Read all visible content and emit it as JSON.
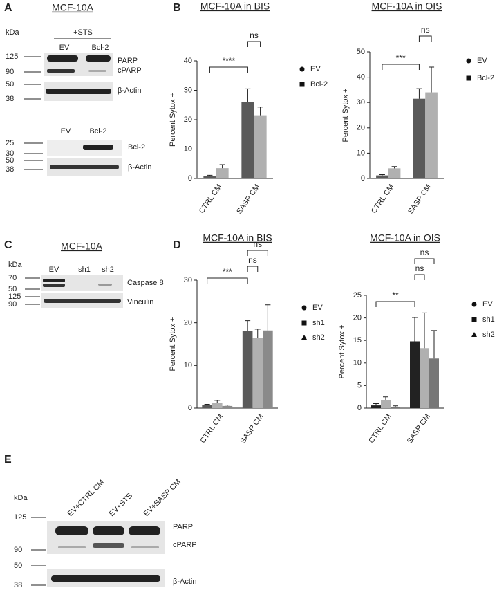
{
  "panels": {
    "A": {
      "label": "A",
      "title": "MCF-10A",
      "unit": "kDa",
      "treatment": "+STS",
      "blot1": {
        "lanes": [
          "EV",
          "Bcl-2"
        ],
        "markers": [
          125,
          90,
          50,
          38
        ],
        "bands": [
          "PARP",
          "cPARP",
          "β-Actin"
        ]
      },
      "blot2": {
        "lanes": [
          "EV",
          "Bcl-2"
        ],
        "markers": [
          25,
          30,
          50,
          38
        ],
        "bands": [
          "Bcl-2",
          "β-Actin"
        ]
      }
    },
    "B": {
      "label": "B"
    },
    "C": {
      "label": "C",
      "title": "MCF-10A",
      "unit": "kDa",
      "lanes": [
        "EV",
        "sh1",
        "sh2"
      ],
      "markers": [
        70,
        50,
        125,
        90
      ],
      "bands": [
        "Caspase 8",
        "Vinculin"
      ]
    },
    "D": {
      "label": "D"
    },
    "E": {
      "label": "E",
      "unit": "kDa",
      "lanes": [
        "EV+CTRL CM",
        "EV+STS",
        "EV+SASP CM"
      ],
      "markers": [
        125,
        90,
        50,
        38
      ],
      "bands": [
        "PARP",
        "cPARP",
        "β-Actin"
      ]
    }
  },
  "chart_data": [
    {
      "type": "bar",
      "title": "MCF-10A in BIS",
      "y_label": "Percent Sytox +",
      "categories": [
        "CTRL CM",
        "SASP CM"
      ],
      "series": [
        {
          "name": "EV",
          "color": "#5a5a5a",
          "marker": "circle",
          "values": [
            0.8,
            26
          ],
          "errors": [
            0.3,
            4.5
          ]
        },
        {
          "name": "Bcl-2",
          "color": "#b0b0b0",
          "marker": "square",
          "values": [
            3.5,
            21.5
          ],
          "errors": [
            1.2,
            2.8
          ]
        }
      ],
      "ylim": [
        0,
        40
      ],
      "yticks": [
        0,
        10,
        20,
        30,
        40
      ],
      "annotations": [
        "****",
        "ns"
      ]
    },
    {
      "type": "bar",
      "title": "MCF-10A in OIS",
      "y_label": "Percent Sytox +",
      "categories": [
        "CTRL CM",
        "SASP CM"
      ],
      "series": [
        {
          "name": "EV",
          "color": "#5a5a5a",
          "marker": "circle",
          "values": [
            1.2,
            31.5
          ],
          "errors": [
            0.3,
            4
          ]
        },
        {
          "name": "Bcl-2",
          "color": "#b0b0b0",
          "marker": "square",
          "values": [
            4,
            34
          ],
          "errors": [
            0.7,
            10
          ]
        }
      ],
      "ylim": [
        0,
        50
      ],
      "yticks": [
        0,
        10,
        20,
        30,
        40,
        50
      ],
      "annotations": [
        "***",
        "ns"
      ]
    },
    {
      "type": "bar",
      "title": "MCF-10A in BIS",
      "y_label": "Percent Sytox +",
      "categories": [
        "CTRL CM",
        "SASP CM"
      ],
      "series": [
        {
          "name": "EV",
          "color": "#5a5a5a",
          "marker": "circle",
          "values": [
            0.7,
            18
          ],
          "errors": [
            0.2,
            2.5
          ]
        },
        {
          "name": "sh1",
          "color": "#b0b0b0",
          "marker": "square",
          "values": [
            1.3,
            16.5
          ],
          "errors": [
            0.5,
            2
          ]
        },
        {
          "name": "sh2",
          "color": "#8a8a8a",
          "marker": "triangle",
          "values": [
            0.5,
            18.2
          ],
          "errors": [
            0.2,
            6
          ]
        }
      ],
      "ylim": [
        0,
        30
      ],
      "yticks": [
        0,
        10,
        20,
        30
      ],
      "annotations": [
        "***",
        "ns",
        "ns"
      ]
    },
    {
      "type": "bar",
      "title": "MCF-10A in OIS",
      "y_label": "Percent Sytox +",
      "categories": [
        "CTRL CM",
        "SASP CM"
      ],
      "series": [
        {
          "name": "EV",
          "color": "#222222",
          "marker": "circle",
          "values": [
            0.6,
            14.8
          ],
          "errors": [
            0.4,
            5.3
          ]
        },
        {
          "name": "sh1",
          "color": "#b0b0b0",
          "marker": "square",
          "values": [
            1.7,
            13.3
          ],
          "errors": [
            0.8,
            7.8
          ]
        },
        {
          "name": "sh2",
          "color": "#777777",
          "marker": "triangle",
          "values": [
            0.3,
            11
          ],
          "errors": [
            0.2,
            6.2
          ]
        }
      ],
      "ylim": [
        0,
        25
      ],
      "yticks": [
        0,
        5,
        10,
        15,
        20,
        25
      ],
      "annotations": [
        "**",
        "ns",
        "ns"
      ]
    }
  ]
}
